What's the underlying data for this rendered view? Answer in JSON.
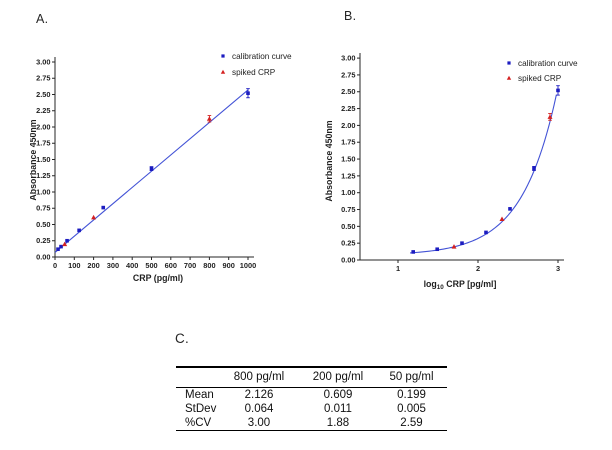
{
  "panel_a": {
    "label": "A."
  },
  "panel_b": {
    "label": "B."
  },
  "panel_c": {
    "label": "C.",
    "table": {
      "columns": [
        "",
        "800 pg/ml",
        "200 pg/ml",
        "50 pg/ml"
      ],
      "rows": [
        {
          "label": "Mean",
          "values": [
            "2.126",
            "0.609",
            "0.199"
          ]
        },
        {
          "label": "StDev",
          "values": [
            "0.064",
            "0.011",
            "0.005"
          ]
        },
        {
          "label": "%CV",
          "values": [
            "3.00",
            "1.88",
            "2.59"
          ]
        }
      ]
    }
  },
  "chart_data": [
    {
      "id": "chartA",
      "panel": "A",
      "type": "scatter",
      "title": "",
      "xlabel": "CRP (pg/ml)",
      "ylabel": "Absorbance 450nm",
      "xlim": [
        0,
        1050
      ],
      "ylim": [
        0,
        3.0
      ],
      "grid": false,
      "legend_position": "top-right",
      "x_ticks": [
        0,
        100,
        200,
        300,
        400,
        500,
        600,
        700,
        800,
        900,
        1000
      ],
      "y_ticks": [
        "0.00",
        "0.25",
        "0.50",
        "0.75",
        "1.00",
        "1.25",
        "1.50",
        "1.75",
        "2.00",
        "2.25",
        "2.50",
        "2.75",
        "3.00"
      ],
      "series": [
        {
          "name": "calibration curve",
          "marker": "square",
          "color": "#1c1cc0",
          "x": [
            15.6,
            31.25,
            62.5,
            125,
            250,
            500,
            1000
          ],
          "y": [
            0.12,
            0.16,
            0.25,
            0.41,
            0.76,
            1.36,
            2.52
          ],
          "yerr": [
            0,
            0,
            0,
            0,
            0,
            0.03,
            0.07
          ]
        },
        {
          "name": "spiked CRP",
          "marker": "triangle",
          "color": "#d42020",
          "x": [
            50,
            200,
            800
          ],
          "y": [
            0.199,
            0.609,
            2.126
          ],
          "yerr": [
            0,
            0,
            0.05
          ]
        }
      ],
      "trendline": {
        "type": "linear",
        "slope": 0.0025,
        "intercept": 0.07,
        "domain": [
          0,
          1000
        ],
        "color": "#4353d6"
      }
    },
    {
      "id": "chartB",
      "panel": "B",
      "type": "scatter",
      "title": "",
      "xlabel": "log10 CRP [pg/ml]",
      "xlabel_parts": {
        "base": "log",
        "sub": "10",
        "rest": " CRP [pg/ml]"
      },
      "ylabel": "Absorbance 450nm",
      "xlim": [
        0.5,
        3.1
      ],
      "ylim": [
        0,
        3.0
      ],
      "grid": false,
      "legend_position": "top-right",
      "x_ticks": [
        1,
        2,
        3
      ],
      "y_ticks": [
        "0.00",
        "0.25",
        "0.50",
        "0.75",
        "1.00",
        "1.25",
        "1.50",
        "1.75",
        "2.00",
        "2.25",
        "2.50",
        "2.75",
        "3.00"
      ],
      "series": [
        {
          "name": "calibration curve",
          "marker": "square",
          "color": "#1c1cc0",
          "x": [
            1.19,
            1.49,
            1.8,
            2.1,
            2.4,
            2.7,
            3.0
          ],
          "y": [
            0.12,
            0.16,
            0.25,
            0.41,
            0.76,
            1.36,
            2.52
          ],
          "yerr": [
            0,
            0,
            0,
            0,
            0,
            0.03,
            0.07
          ]
        },
        {
          "name": "spiked CRP",
          "marker": "triangle",
          "color": "#d42020",
          "x": [
            1.7,
            2.3,
            2.9
          ],
          "y": [
            0.199,
            0.609,
            2.126
          ],
          "yerr": [
            0,
            0,
            0.05
          ]
        }
      ],
      "trendline": {
        "type": "exp10",
        "a": 0.0025,
        "b": 0.07,
        "domain": [
          1.15,
          3.0
        ],
        "color": "#4353d6"
      }
    }
  ]
}
